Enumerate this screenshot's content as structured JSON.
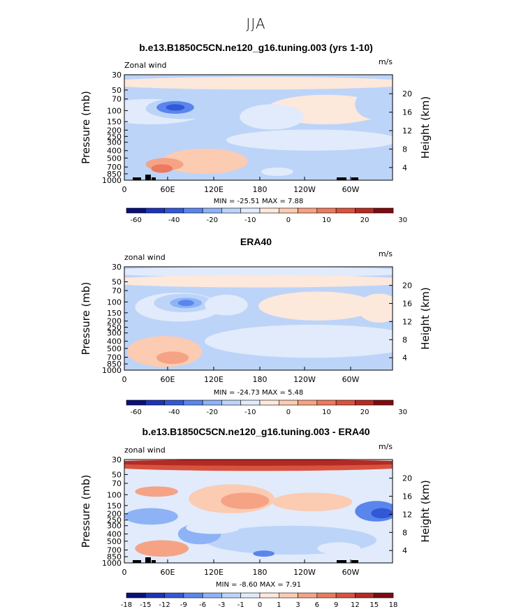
{
  "page": {
    "title": "JJA"
  },
  "colorbars": {
    "standard": {
      "labels": [
        "-60",
        "-40",
        "-20",
        "-10",
        "0",
        "10",
        "20",
        "30"
      ],
      "colors": [
        "#08117a",
        "#1d34b5",
        "#3358d6",
        "#5a85ec",
        "#8eb2f6",
        "#bdd4f9",
        "#e1ebfb",
        "#fde8dc",
        "#fbcbb2",
        "#f6a285",
        "#ec7a5e",
        "#d8533e",
        "#b52a23",
        "#7f0b12"
      ]
    },
    "difference": {
      "labels": [
        "-18",
        "-15",
        "-12",
        "-9",
        "-6",
        "-3",
        "-1",
        "0",
        "1",
        "3",
        "6",
        "9",
        "12",
        "15",
        "18"
      ],
      "colors": [
        "#08117a",
        "#1d34b5",
        "#3358d6",
        "#5a85ec",
        "#8eb2f6",
        "#bdd4f9",
        "#e1ebfb",
        "#fde8dc",
        "#fbcbb2",
        "#f6a285",
        "#ec7a5e",
        "#d8533e",
        "#b52a23",
        "#7f0b12"
      ]
    }
  },
  "chart_data": [
    {
      "type": "heatmap",
      "title": "b.e13.B1850C5CN.ne120_g16.tuning.003 (yrs 1-10)",
      "corner_left": "Zonal wind",
      "units": "m/s",
      "ylabel": "Pressure (mb)",
      "y2label": "Height (km)",
      "x_ticks": [
        "0",
        "60E",
        "120E",
        "180",
        "120W",
        "60W"
      ],
      "y_ticks": [
        "30",
        "50",
        "70",
        "100",
        "150",
        "200",
        "250",
        "300",
        "400",
        "500",
        "700",
        "850",
        "1000"
      ],
      "y2_ticks": [
        "20",
        "16",
        "12",
        "8",
        "4"
      ],
      "stats": "MIN = -25.51   MAX =   7.88",
      "min": -25.51,
      "max": 7.88,
      "colorbar": "standard"
    },
    {
      "type": "heatmap",
      "title": "ERA40",
      "corner_left": "zonal wind",
      "units": "m/s",
      "ylabel": "Pressure (mb)",
      "y2label": "Height (km)",
      "x_ticks": [
        "0",
        "60E",
        "120E",
        "180",
        "120W",
        "60W"
      ],
      "y_ticks": [
        "30",
        "50",
        "70",
        "100",
        "150",
        "200",
        "250",
        "300",
        "400",
        "500",
        "700",
        "850",
        "1000"
      ],
      "y2_ticks": [
        "20",
        "16",
        "12",
        "8",
        "4"
      ],
      "stats": "MIN = -24.73   MAX =   5.48",
      "min": -24.73,
      "max": 5.48,
      "colorbar": "standard"
    },
    {
      "type": "heatmap",
      "title": "b.e13.B1850C5CN.ne120_g16.tuning.003 - ERA40",
      "corner_left": "zonal wind",
      "units": "m/s",
      "ylabel": "Pressure (mb)",
      "y2label": "Height (km)",
      "x_ticks": [
        "0",
        "60E",
        "120E",
        "180",
        "120W",
        "60W"
      ],
      "y_ticks": [
        "30",
        "50",
        "70",
        "100",
        "150",
        "200",
        "250",
        "300",
        "400",
        "500",
        "700",
        "850",
        "1000"
      ],
      "y2_ticks": [
        "20",
        "16",
        "12",
        "8",
        "4"
      ],
      "stats": "MIN =  -8.60   MAX =   7.91",
      "min": -8.6,
      "max": 7.91,
      "colorbar": "difference"
    }
  ]
}
